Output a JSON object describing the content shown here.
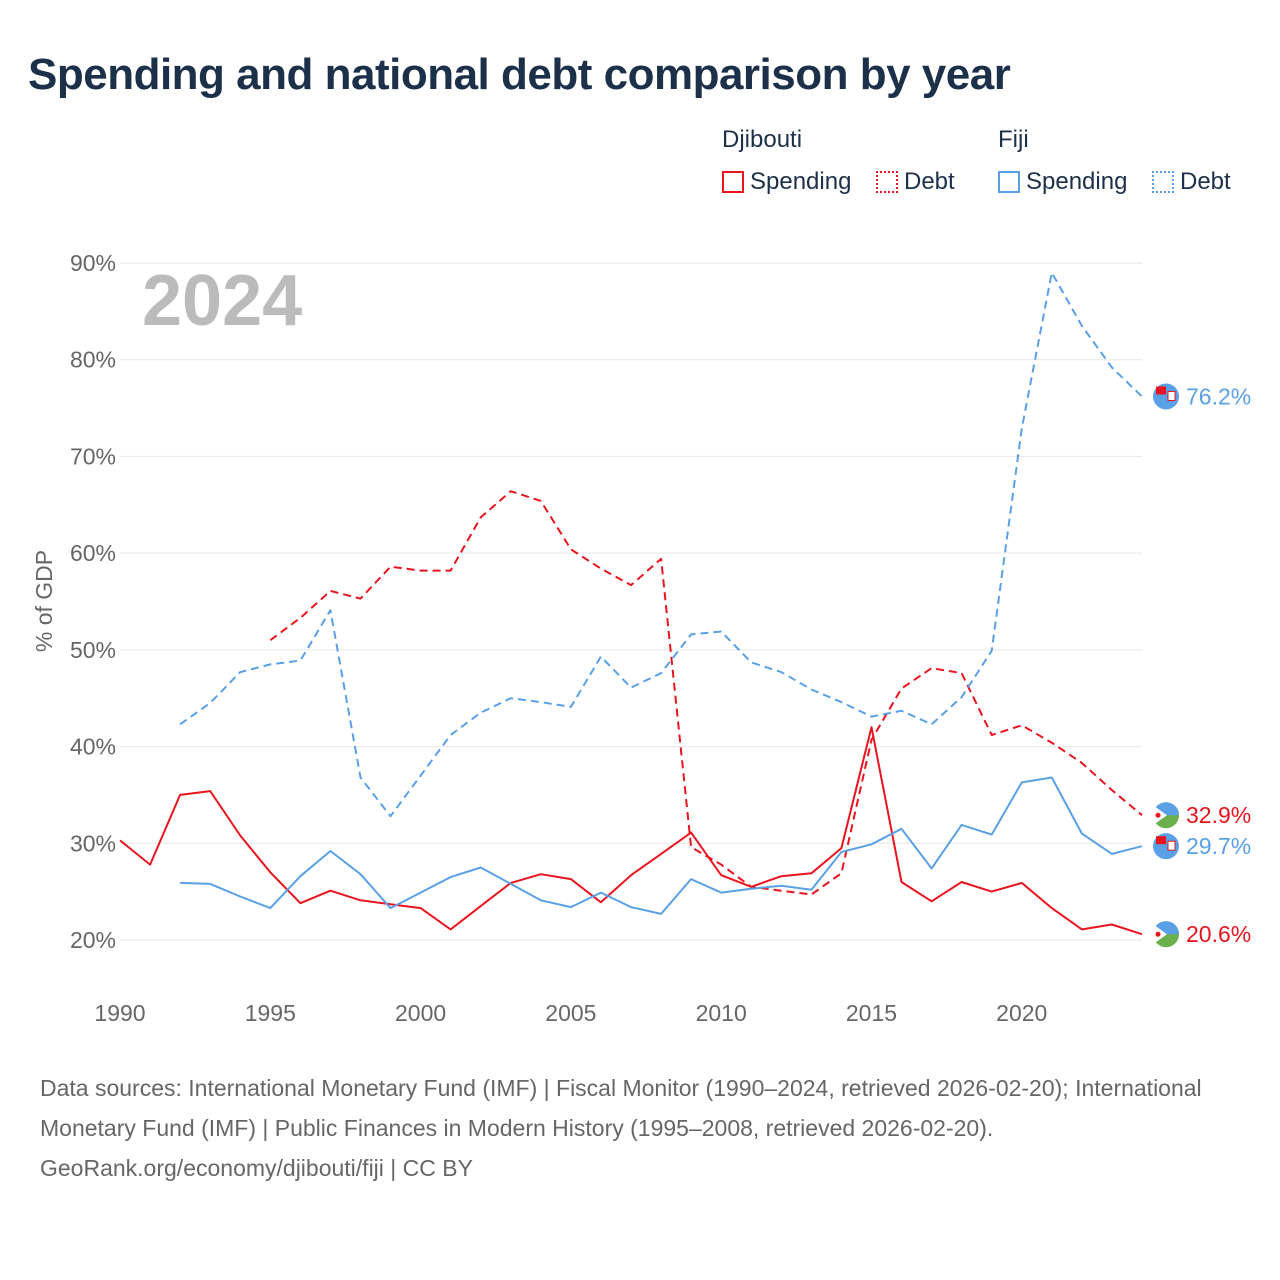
{
  "title": "Spending and national debt comparison by year",
  "legend": {
    "groups": [
      {
        "country": "Djibouti",
        "items": [
          {
            "label": "Spending",
            "style": "solid"
          },
          {
            "label": "Debt",
            "style": "dotted"
          }
        ],
        "color": "#e8141e"
      },
      {
        "country": "Fiji",
        "items": [
          {
            "label": "Spending",
            "style": "solid"
          },
          {
            "label": "Debt",
            "style": "dotted"
          }
        ],
        "color": "#5aa0e6"
      }
    ]
  },
  "footer": {
    "sources": "Data sources: International Monetary Fund (IMF) | Fiscal Monitor (1990–2024, retrieved 2026-02-20); International Monetary Fund (IMF) | Public Finances in Modern History (1995–2008, retrieved 2026-02-20).",
    "credit": "GeoRank.org/economy/djibouti/fiji | CC BY"
  },
  "chart_data": {
    "type": "line",
    "title": "Spending and national debt comparison by year",
    "year_watermark": "2024",
    "ylabel": "% of GDP",
    "xlabel": "",
    "xlim": [
      1990,
      2024
    ],
    "ylim": [
      20,
      90
    ],
    "y_ticks": [
      20,
      30,
      40,
      50,
      60,
      70,
      80,
      90
    ],
    "y_tick_labels": [
      "20%",
      "30%",
      "40%",
      "50%",
      "60%",
      "70%",
      "80%",
      "90%"
    ],
    "x_ticks": [
      1990,
      1995,
      2000,
      2005,
      2010,
      2015,
      2020
    ],
    "x_tick_labels": [
      "1990",
      "1995",
      "2000",
      "2005",
      "2010",
      "2015",
      "2020"
    ],
    "grid": true,
    "series": [
      {
        "name": "Djibouti Spending",
        "country": "Djibouti",
        "metric": "Spending",
        "color": "#e8141e",
        "dashed": false,
        "end_label": "20.6%",
        "x": [
          1990,
          1991,
          1992,
          1993,
          1994,
          1995,
          1996,
          1997,
          1998,
          1999,
          2000,
          2001,
          2002,
          2003,
          2004,
          2005,
          2006,
          2007,
          2008,
          2009,
          2010,
          2011,
          2012,
          2013,
          2014,
          2015,
          2016,
          2017,
          2018,
          2019,
          2020,
          2021,
          2022,
          2023,
          2024
        ],
        "values": [
          30.3,
          27.8,
          35.0,
          35.4,
          30.8,
          27.0,
          23.8,
          25.1,
          24.1,
          23.7,
          23.3,
          21.1,
          23.5,
          25.9,
          26.8,
          26.3,
          23.9,
          26.7,
          28.9,
          31.1,
          26.7,
          25.5,
          26.6,
          26.9,
          29.5,
          42.0,
          26.0,
          24.0,
          26.0,
          25.0,
          25.9,
          23.3,
          21.1,
          21.6,
          20.6
        ]
      },
      {
        "name": "Djibouti Debt",
        "country": "Djibouti",
        "metric": "Debt",
        "color": "#e8141e",
        "dashed": true,
        "end_label": "32.9%",
        "x": [
          1995,
          1996,
          1997,
          1998,
          1999,
          2000,
          2001,
          2002,
          2003,
          2004,
          2005,
          2006,
          2007,
          2008,
          2009,
          2010,
          2011,
          2012,
          2013,
          2014,
          2015,
          2016,
          2017,
          2018,
          2019,
          2020,
          2021,
          2022,
          2023,
          2024
        ],
        "values": [
          51.0,
          53.3,
          56.1,
          55.3,
          58.6,
          58.2,
          58.2,
          63.7,
          66.4,
          65.4,
          60.4,
          58.4,
          56.7,
          59.4,
          29.6,
          27.8,
          25.5,
          25.1,
          24.7,
          26.9,
          40.7,
          46.0,
          48.1,
          47.6,
          41.2,
          42.2,
          40.4,
          38.3,
          35.5,
          32.9
        ]
      },
      {
        "name": "Fiji Spending",
        "country": "Fiji",
        "metric": "Spending",
        "color": "#5aa0e6",
        "dashed": false,
        "end_label": "29.7%",
        "x": [
          1992,
          1993,
          1994,
          1995,
          1996,
          1997,
          1998,
          1999,
          2000,
          2001,
          2002,
          2003,
          2004,
          2005,
          2006,
          2007,
          2008,
          2009,
          2010,
          2011,
          2012,
          2013,
          2014,
          2015,
          2016,
          2017,
          2018,
          2019,
          2020,
          2021,
          2022,
          2023,
          2024
        ],
        "values": [
          25.9,
          25.8,
          24.5,
          23.3,
          26.6,
          29.2,
          26.8,
          23.3,
          24.9,
          26.5,
          27.5,
          25.8,
          24.1,
          23.4,
          24.9,
          23.4,
          22.7,
          26.3,
          24.9,
          25.3,
          25.6,
          25.2,
          29.1,
          29.9,
          31.5,
          27.4,
          31.9,
          30.9,
          36.3,
          36.8,
          31.0,
          28.9,
          29.7
        ]
      },
      {
        "name": "Fiji Debt",
        "country": "Fiji",
        "metric": "Debt",
        "color": "#5aa0e6",
        "dashed": true,
        "end_label": "76.2%",
        "x": [
          1992,
          1993,
          1994,
          1995,
          1996,
          1997,
          1998,
          1999,
          2000,
          2001,
          2002,
          2003,
          2004,
          2005,
          2006,
          2007,
          2008,
          2009,
          2010,
          2011,
          2012,
          2013,
          2014,
          2015,
          2016,
          2017,
          2018,
          2019,
          2020,
          2021,
          2022,
          2023,
          2024
        ],
        "values": [
          42.3,
          44.5,
          47.7,
          48.5,
          48.9,
          54.1,
          36.8,
          32.8,
          37.0,
          41.2,
          43.5,
          45.0,
          44.6,
          44.1,
          49.3,
          46.1,
          47.6,
          51.6,
          51.9,
          48.7,
          47.7,
          45.9,
          44.6,
          43.1,
          43.7,
          42.3,
          45.1,
          49.9,
          72.9,
          89.0,
          83.5,
          79.2,
          76.2
        ]
      }
    ]
  }
}
